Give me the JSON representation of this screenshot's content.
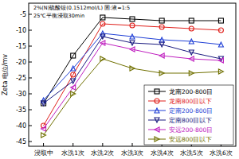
{
  "chart_data": {
    "type": "line",
    "annotations": [
      "2%(N)硫酸铵(0.1512mol/L) 固:液=1:5",
      "25℃平衡浸取30min"
    ],
    "y_label": "Zeta 电位/mv",
    "categories": [
      "浸取中",
      "水洗1次",
      "水洗2次",
      "水洗3次",
      "水洗4次",
      "水洗5次",
      "水洗6次"
    ],
    "ylim": [
      -46.5,
      -1.5
    ],
    "yticks": [
      -45,
      -40,
      -35,
      -30,
      -25,
      -20,
      -15,
      -10,
      -5
    ],
    "grid": false,
    "legend": "lower right",
    "series": [
      {
        "name": "龙南200-800目",
        "color": "#000000",
        "marker": "square",
        "values": [
          -33,
          -18,
          -6,
          -6.5,
          -7,
          -7,
          -7
        ]
      },
      {
        "name": "龙南800目以下",
        "color": "#e0201b",
        "marker": "circle",
        "values": [
          -40,
          -24,
          -8,
          -8.5,
          -9,
          -9.5,
          -10
        ]
      },
      {
        "name": "定南200-800目",
        "color": "#1f3fd6",
        "marker": "triangle-up",
        "values": [
          -32,
          -22,
          -11,
          -12,
          -13,
          -13.5,
          -14.5
        ]
      },
      {
        "name": "定南800目以下",
        "color": "#1a1a80",
        "marker": "triangle-down",
        "values": [
          -33,
          -26,
          -12,
          -14,
          -14.5,
          -17,
          -19
        ]
      },
      {
        "name": "安远200-800目",
        "color": "#c020c0",
        "marker": "triangle-left",
        "values": [
          -41,
          -28,
          -14,
          -16,
          -18,
          -19,
          -19.5
        ]
      },
      {
        "name": "安远800目以下",
        "color": "#707000",
        "marker": "triangle-right",
        "values": [
          -43,
          -30,
          -19,
          -22,
          -23.5,
          -23.5,
          -23
        ]
      }
    ]
  }
}
